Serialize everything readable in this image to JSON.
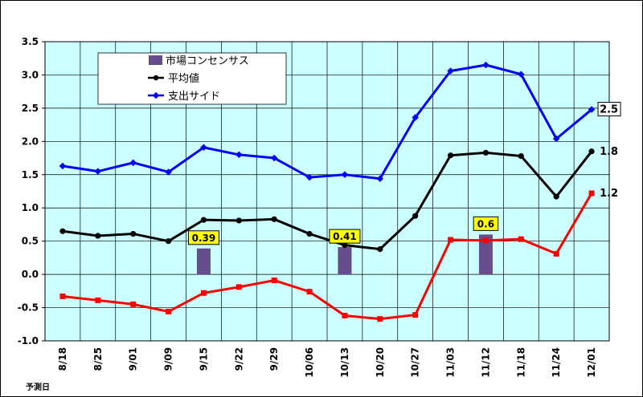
{
  "chart_data": {
    "type": "line",
    "xlabel": "予測日",
    "ylabel": "",
    "ylim": [
      -1.0,
      3.5
    ],
    "yticks": [
      "3.5",
      "3.0",
      "2.5",
      "2.0",
      "1.5",
      "1.0",
      "0.5",
      "0.0",
      "-0.5",
      "-1.0"
    ],
    "categories": [
      "8/18",
      "8/25",
      "9/01",
      "9/09",
      "9/15",
      "9/22",
      "9/29",
      "10/06",
      "10/13",
      "10/20",
      "10/27",
      "11/03",
      "11/12",
      "11/18",
      "11/24",
      "12/01"
    ],
    "grid": true,
    "legend_position": "top-left",
    "colors": {
      "background": "#ccffff",
      "grid": "#000000",
      "consensus": "#664d8c",
      "average": "#000000",
      "expenditure": "#0000ff",
      "lower": "#ff0000",
      "callout_fill": "#ffff00"
    },
    "series": [
      {
        "name": "支出サイド",
        "color": "#0000ff",
        "marker": "diamond",
        "values": [
          1.63,
          1.55,
          1.68,
          1.54,
          1.91,
          1.8,
          1.75,
          1.46,
          1.5,
          1.44,
          2.36,
          3.06,
          3.15,
          3.01,
          2.04,
          2.48
        ]
      },
      {
        "name": "平均値",
        "color": "#000000",
        "marker": "circle",
        "values": [
          0.65,
          0.58,
          0.61,
          0.5,
          0.82,
          0.81,
          0.83,
          0.61,
          0.44,
          0.38,
          0.88,
          1.79,
          1.83,
          1.78,
          1.17,
          1.85
        ]
      },
      {
        "name": "",
        "color": "#ff0000",
        "marker": "square",
        "values": [
          -0.33,
          -0.39,
          -0.45,
          -0.56,
          -0.28,
          -0.19,
          -0.09,
          -0.26,
          -0.62,
          -0.67,
          -0.61,
          0.52,
          0.51,
          0.53,
          0.31,
          1.22
        ]
      }
    ],
    "consensus": {
      "name": "市場コンセンサス",
      "bars": [
        {
          "category": "9/15",
          "value": 0.39,
          "label": "0.39"
        },
        {
          "category": "10/13",
          "value": 0.41,
          "label": "0.41"
        },
        {
          "category": "11/12",
          "value": 0.6,
          "label": "0.6"
        }
      ]
    },
    "end_labels": [
      {
        "series": "支出サイド",
        "label": "2.5",
        "boxed": true
      },
      {
        "series": "平均値",
        "label": "1.8",
        "boxed": false
      },
      {
        "series": "lower",
        "label": "1.2",
        "boxed": false
      }
    ]
  }
}
